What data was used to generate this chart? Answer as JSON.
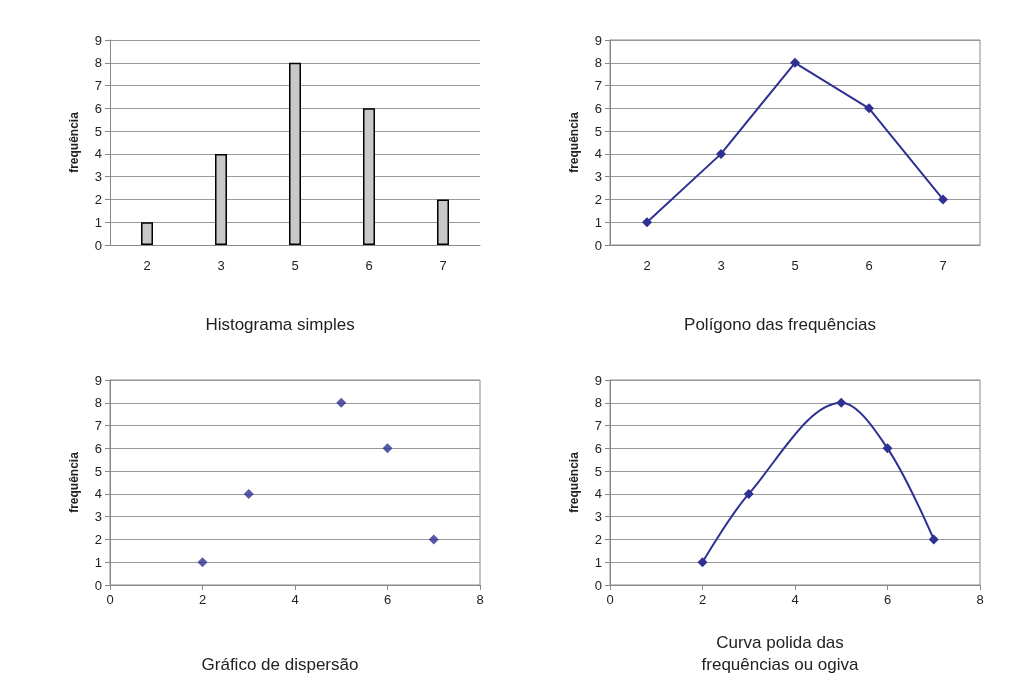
{
  "chart_data": [
    {
      "type": "bar",
      "title": "Histograma simples",
      "ylabel": "frequência",
      "categories": [
        "2",
        "3",
        "5",
        "6",
        "7"
      ],
      "values": [
        1,
        4,
        8,
        6,
        2
      ],
      "color": "#c8c8c8",
      "ylim": [
        0,
        9
      ],
      "yticks": [
        0,
        1,
        2,
        3,
        4,
        5,
        6,
        7,
        8,
        9
      ],
      "grid": "y"
    },
    {
      "type": "line",
      "title": "Polígono das frequências",
      "ylabel": "frequência",
      "categories": [
        "2",
        "3",
        "5",
        "6",
        "7"
      ],
      "values": [
        1,
        4,
        8,
        6,
        2
      ],
      "color": "#2e3192",
      "ylim": [
        0,
        9
      ],
      "yticks": [
        0,
        1,
        2,
        3,
        4,
        5,
        6,
        7,
        8,
        9
      ],
      "grid": "y",
      "marker": "diamond",
      "line_style": "solid"
    },
    {
      "type": "scatter",
      "title": "Gráfico de dispersão",
      "ylabel": "frequência",
      "x": [
        2,
        3,
        5,
        6,
        7
      ],
      "values": [
        1,
        4,
        8,
        6,
        2
      ],
      "color": "#2e3192",
      "xlim": [
        0,
        8
      ],
      "xticks": [
        0,
        2,
        4,
        6,
        8
      ],
      "ylim": [
        0,
        9
      ],
      "yticks": [
        0,
        1,
        2,
        3,
        4,
        5,
        6,
        7,
        8,
        9
      ],
      "grid": "y",
      "marker": "diamond"
    },
    {
      "type": "line",
      "title": "Curva polida das\nfrequências ou ogiva",
      "ylabel": "frequência",
      "x": [
        2,
        3,
        5,
        6,
        7
      ],
      "values": [
        1,
        4,
        8,
        6,
        2
      ],
      "color": "#2e3192",
      "xlim": [
        0,
        8
      ],
      "xticks": [
        0,
        2,
        4,
        6,
        8
      ],
      "ylim": [
        0,
        9
      ],
      "yticks": [
        0,
        1,
        2,
        3,
        4,
        5,
        6,
        7,
        8,
        9
      ],
      "grid": "y",
      "marker": "diamond",
      "line_style": "solid"
    }
  ]
}
